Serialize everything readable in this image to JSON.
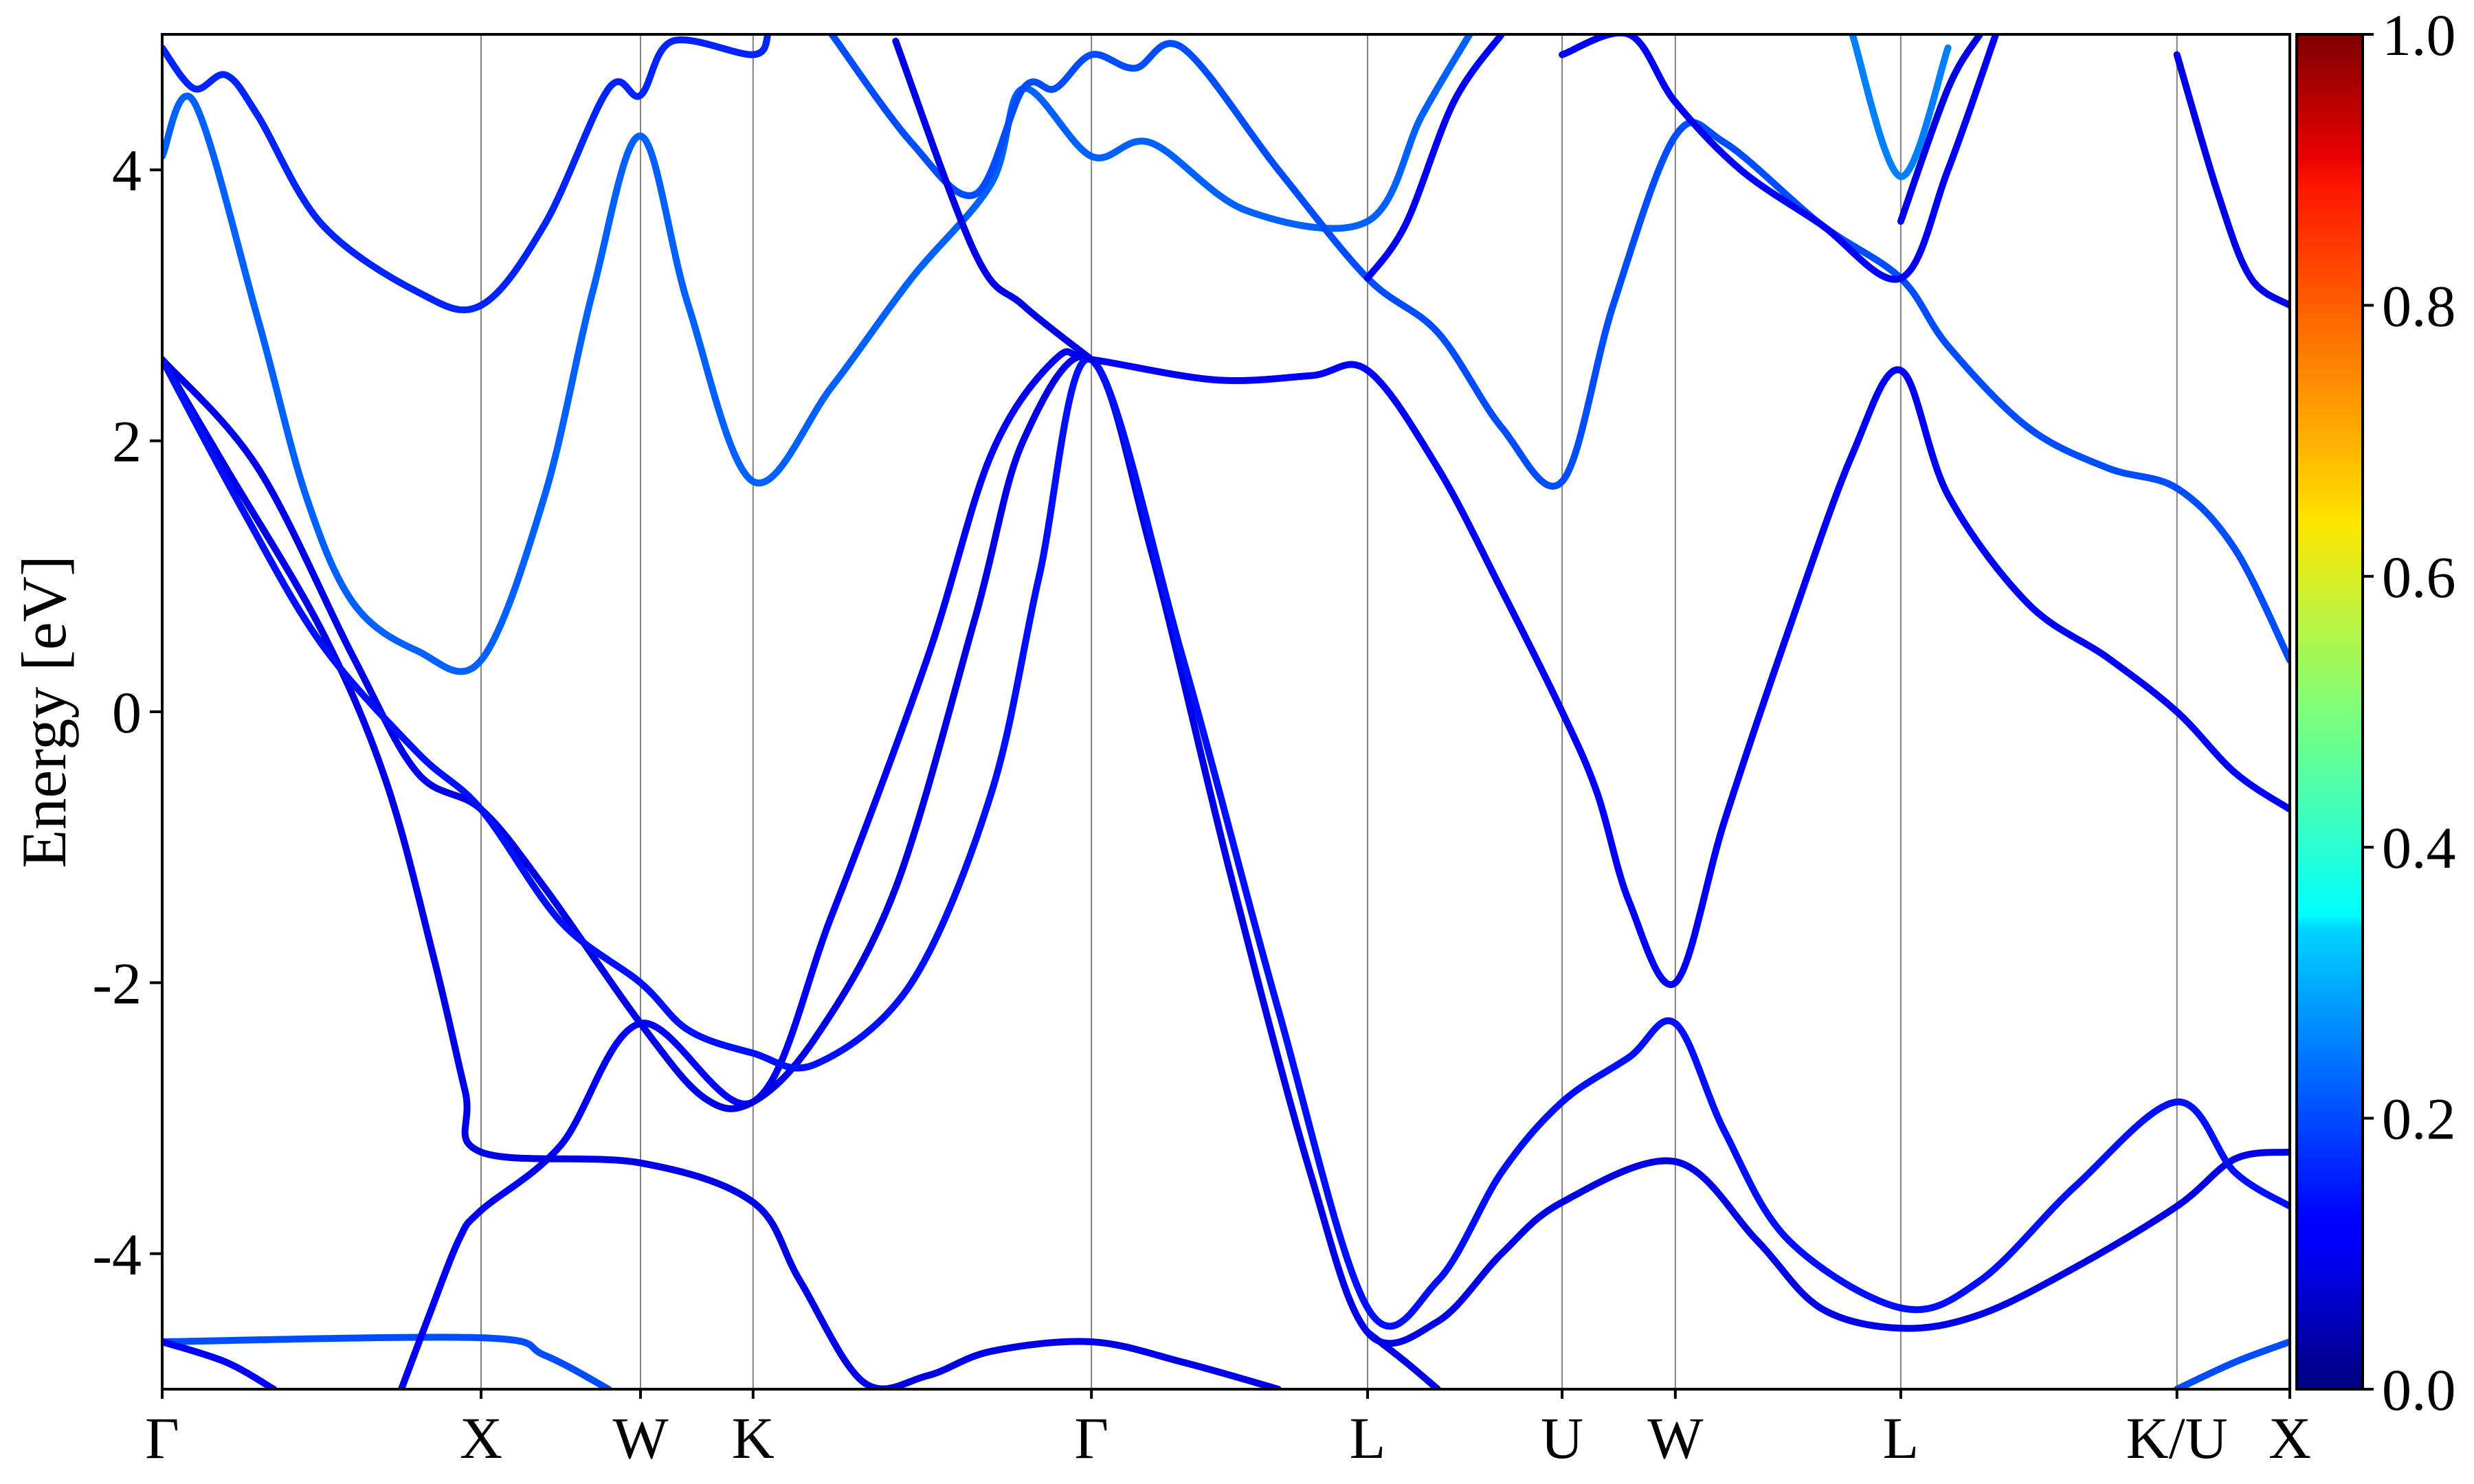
{
  "chart_data": {
    "type": "line",
    "title": "",
    "xlabel": "",
    "ylabel": "Energy [eV]",
    "ylim": [
      -5,
      5
    ],
    "yticks": [
      -4,
      -2,
      0,
      2,
      4
    ],
    "ytick_labels": [
      "-4",
      "-2",
      "0",
      "2",
      "4"
    ],
    "kpath": [
      {
        "label": "Γ",
        "k": 0.0
      },
      {
        "label": "X",
        "k": 1.0
      },
      {
        "label": "W",
        "k": 1.5
      },
      {
        "label": "K",
        "k": 1.853
      },
      {
        "label": "Γ",
        "k": 2.914
      },
      {
        "label": "L",
        "k": 3.78
      },
      {
        "label": "U",
        "k": 4.39
      },
      {
        "label": "W",
        "k": 4.745
      },
      {
        "label": "L",
        "k": 5.452
      },
      {
        "label": "K/U",
        "k": 6.318
      },
      {
        "label": "X",
        "k": 6.672
      }
    ],
    "colorbar": {
      "colormap": "jet",
      "range": [
        0.0,
        1.0
      ],
      "ticks": [
        0.0,
        0.2,
        0.4,
        0.6,
        0.8,
        1.0
      ],
      "tick_labels": [
        "0.0",
        "0.2",
        "0.4",
        "0.6",
        "0.8",
        "1.0"
      ]
    },
    "series": [
      {
        "weight": 0.2,
        "points": [
          [
            0.0,
            -4.65
          ],
          [
            1.0,
            -4.62
          ],
          [
            1.2,
            -4.75
          ],
          [
            1.4,
            -5.0
          ]
        ]
      },
      {
        "weight": 0.12,
        "points": [
          [
            0.0,
            -4.65
          ],
          [
            0.2,
            -4.8
          ],
          [
            0.35,
            -5.0
          ]
        ]
      },
      {
        "weight": 0.12,
        "points": [
          [
            0.75,
            -5.0
          ],
          [
            0.83,
            -4.5
          ],
          [
            0.93,
            -3.9
          ],
          [
            1.0,
            -3.68
          ],
          [
            1.25,
            -3.2
          ],
          [
            1.5,
            -2.3
          ],
          [
            1.853,
            -2.88
          ],
          [
            2.1,
            -1.5
          ],
          [
            2.4,
            0.4
          ],
          [
            2.6,
            1.9
          ],
          [
            2.8,
            2.6
          ],
          [
            2.914,
            2.6
          ],
          [
            3.3,
            2.45
          ],
          [
            3.6,
            2.48
          ],
          [
            3.78,
            2.52
          ],
          [
            4.0,
            1.8
          ],
          [
            4.2,
            0.9
          ],
          [
            4.39,
            0.0
          ],
          [
            4.5,
            -0.6
          ],
          [
            4.6,
            -1.4
          ],
          [
            4.745,
            -2.0
          ],
          [
            4.9,
            -0.8
          ],
          [
            5.1,
            0.6
          ],
          [
            5.3,
            1.9
          ],
          [
            5.452,
            2.52
          ],
          [
            5.6,
            1.6
          ],
          [
            5.85,
            0.8
          ],
          [
            6.1,
            0.4
          ],
          [
            6.318,
            0.0
          ],
          [
            6.5,
            -0.45
          ],
          [
            6.672,
            -0.72
          ]
        ]
      },
      {
        "weight": 0.1,
        "points": [
          [
            0.0,
            2.6
          ],
          [
            0.2,
            1.8
          ],
          [
            0.5,
            0.6
          ],
          [
            0.7,
            -0.5
          ],
          [
            0.85,
            -1.8
          ],
          [
            0.95,
            -2.8
          ],
          [
            1.0,
            -3.25
          ],
          [
            1.5,
            -3.33
          ],
          [
            1.853,
            -3.62
          ],
          [
            2.0,
            -4.2
          ],
          [
            2.2,
            -4.95
          ],
          [
            2.4,
            -4.9
          ],
          [
            2.6,
            -4.72
          ],
          [
            2.914,
            -4.65
          ],
          [
            3.2,
            -4.8
          ],
          [
            3.5,
            -5.0
          ]
        ]
      },
      {
        "weight": 0.1,
        "points": [
          [
            0.0,
            2.6
          ],
          [
            0.3,
            1.8
          ],
          [
            0.6,
            0.4
          ],
          [
            0.8,
            -0.45
          ],
          [
            1.0,
            -0.72
          ],
          [
            1.2,
            -1.3
          ],
          [
            1.5,
            -2.3
          ],
          [
            1.7,
            -2.85
          ],
          [
            1.853,
            -2.88
          ],
          [
            2.05,
            -2.4
          ],
          [
            2.3,
            -1.3
          ],
          [
            2.55,
            0.7
          ],
          [
            2.7,
            2.0
          ],
          [
            2.914,
            2.6
          ],
          [
            3.1,
            1.2
          ],
          [
            3.35,
            -1.2
          ],
          [
            3.6,
            -3.4
          ],
          [
            3.78,
            -4.58
          ],
          [
            4.0,
            -4.5
          ],
          [
            4.2,
            -4.0
          ],
          [
            4.39,
            -3.62
          ],
          [
            4.745,
            -3.32
          ],
          [
            5.0,
            -3.9
          ],
          [
            5.2,
            -4.4
          ],
          [
            5.452,
            -4.55
          ],
          [
            5.7,
            -4.45
          ],
          [
            6.0,
            -4.1
          ],
          [
            6.318,
            -3.65
          ],
          [
            6.5,
            -3.3
          ],
          [
            6.672,
            -3.25
          ]
        ]
      },
      {
        "weight": 0.14,
        "points": [
          [
            0.0,
            2.6
          ],
          [
            0.25,
            1.5
          ],
          [
            0.5,
            0.5
          ],
          [
            0.8,
            -0.3
          ],
          [
            1.0,
            -0.72
          ],
          [
            1.25,
            -1.55
          ],
          [
            1.5,
            -2.0
          ],
          [
            1.65,
            -2.35
          ],
          [
            1.853,
            -2.52
          ],
          [
            2.05,
            -2.6
          ],
          [
            2.35,
            -2.0
          ],
          [
            2.6,
            -0.6
          ],
          [
            2.75,
            1.0
          ],
          [
            2.914,
            2.6
          ],
          [
            3.2,
            0.4
          ],
          [
            3.5,
            -2.2
          ],
          [
            3.78,
            -4.4
          ],
          [
            4.0,
            -4.2
          ],
          [
            4.2,
            -3.4
          ],
          [
            4.39,
            -2.88
          ],
          [
            4.6,
            -2.55
          ],
          [
            4.745,
            -2.3
          ],
          [
            4.9,
            -3.1
          ],
          [
            5.1,
            -3.9
          ],
          [
            5.452,
            -4.4
          ],
          [
            5.7,
            -4.2
          ],
          [
            6.0,
            -3.5
          ],
          [
            6.318,
            -2.88
          ],
          [
            6.5,
            -3.4
          ],
          [
            6.672,
            -3.65
          ]
        ]
      },
      {
        "weight": 0.22,
        "points": [
          [
            0.0,
            4.1
          ],
          [
            0.1,
            4.5
          ],
          [
            0.3,
            2.9
          ],
          [
            0.45,
            1.6
          ],
          [
            0.6,
            0.8
          ],
          [
            0.8,
            0.45
          ],
          [
            1.0,
            0.38
          ],
          [
            1.2,
            1.6
          ],
          [
            1.35,
            3.1
          ],
          [
            1.5,
            4.25
          ],
          [
            1.65,
            3.0
          ],
          [
            1.853,
            1.7
          ],
          [
            2.1,
            2.4
          ],
          [
            2.35,
            3.2
          ],
          [
            2.6,
            3.9
          ],
          [
            2.7,
            4.6
          ],
          [
            2.914,
            4.1
          ],
          [
            3.1,
            4.2
          ],
          [
            3.4,
            3.7
          ],
          [
            3.78,
            3.62
          ],
          [
            3.95,
            4.4
          ],
          [
            4.1,
            5.0
          ]
        ]
      },
      {
        "weight": 0.16,
        "points": [
          [
            0.0,
            4.9
          ],
          [
            0.1,
            4.6
          ],
          [
            0.2,
            4.7
          ],
          [
            0.3,
            4.4
          ],
          [
            0.5,
            3.6
          ],
          [
            0.8,
            3.1
          ],
          [
            1.0,
            3.0
          ],
          [
            1.2,
            3.6
          ],
          [
            1.4,
            4.6
          ],
          [
            1.5,
            4.55
          ],
          [
            1.6,
            4.95
          ],
          [
            1.853,
            4.85
          ],
          [
            1.9,
            5.0
          ]
        ]
      },
      {
        "weight": 0.2,
        "points": [
          [
            2.1,
            5.0
          ],
          [
            2.35,
            4.2
          ],
          [
            2.55,
            3.82
          ],
          [
            2.7,
            4.6
          ],
          [
            2.8,
            4.6
          ],
          [
            2.914,
            4.85
          ],
          [
            3.05,
            4.75
          ],
          [
            3.2,
            4.9
          ],
          [
            3.5,
            4.0
          ],
          [
            3.78,
            3.2
          ],
          [
            4.0,
            2.8
          ],
          [
            4.2,
            2.1
          ],
          [
            4.39,
            1.7
          ],
          [
            4.55,
            3.0
          ],
          [
            4.745,
            4.25
          ],
          [
            4.9,
            4.2
          ],
          [
            5.2,
            3.6
          ],
          [
            5.452,
            3.2
          ],
          [
            5.6,
            2.7
          ],
          [
            5.85,
            2.1
          ],
          [
            6.1,
            1.8
          ],
          [
            6.318,
            1.65
          ],
          [
            6.5,
            1.2
          ],
          [
            6.672,
            0.38
          ]
        ]
      },
      {
        "weight": 0.1,
        "points": [
          [
            2.3,
            4.95
          ],
          [
            2.55,
            3.38
          ],
          [
            2.7,
            3.0
          ],
          [
            2.914,
            2.6
          ]
        ]
      },
      {
        "weight": 0.12,
        "points": [
          [
            3.78,
            3.2
          ],
          [
            3.9,
            3.6
          ],
          [
            4.05,
            4.5
          ],
          [
            4.2,
            5.0
          ]
        ]
      },
      {
        "weight": 0.12,
        "points": [
          [
            4.39,
            4.85
          ],
          [
            4.6,
            5.0
          ],
          [
            4.745,
            4.5
          ],
          [
            4.95,
            4.0
          ],
          [
            5.2,
            3.6
          ],
          [
            5.452,
            3.2
          ],
          [
            5.6,
            4.0
          ],
          [
            5.75,
            5.0
          ]
        ]
      },
      {
        "weight": 0.1,
        "points": [
          [
            5.452,
            3.62
          ],
          [
            5.6,
            4.6
          ],
          [
            5.7,
            5.0
          ]
        ]
      },
      {
        "weight": 0.25,
        "points": [
          [
            5.3,
            5.0
          ],
          [
            5.452,
            3.95
          ],
          [
            5.6,
            4.9
          ]
        ]
      },
      {
        "weight": 0.1,
        "points": [
          [
            6.318,
            4.85
          ],
          [
            6.45,
            3.8
          ],
          [
            6.55,
            3.2
          ],
          [
            6.672,
            3.0
          ]
        ]
      },
      {
        "weight": 0.2,
        "points": [
          [
            6.318,
            -5.0
          ],
          [
            6.5,
            -4.8
          ],
          [
            6.672,
            -4.65
          ]
        ]
      },
      {
        "weight": 0.1,
        "points": [
          [
            3.78,
            -4.58
          ],
          [
            3.9,
            -4.8
          ],
          [
            4.0,
            -5.0
          ]
        ]
      }
    ]
  }
}
